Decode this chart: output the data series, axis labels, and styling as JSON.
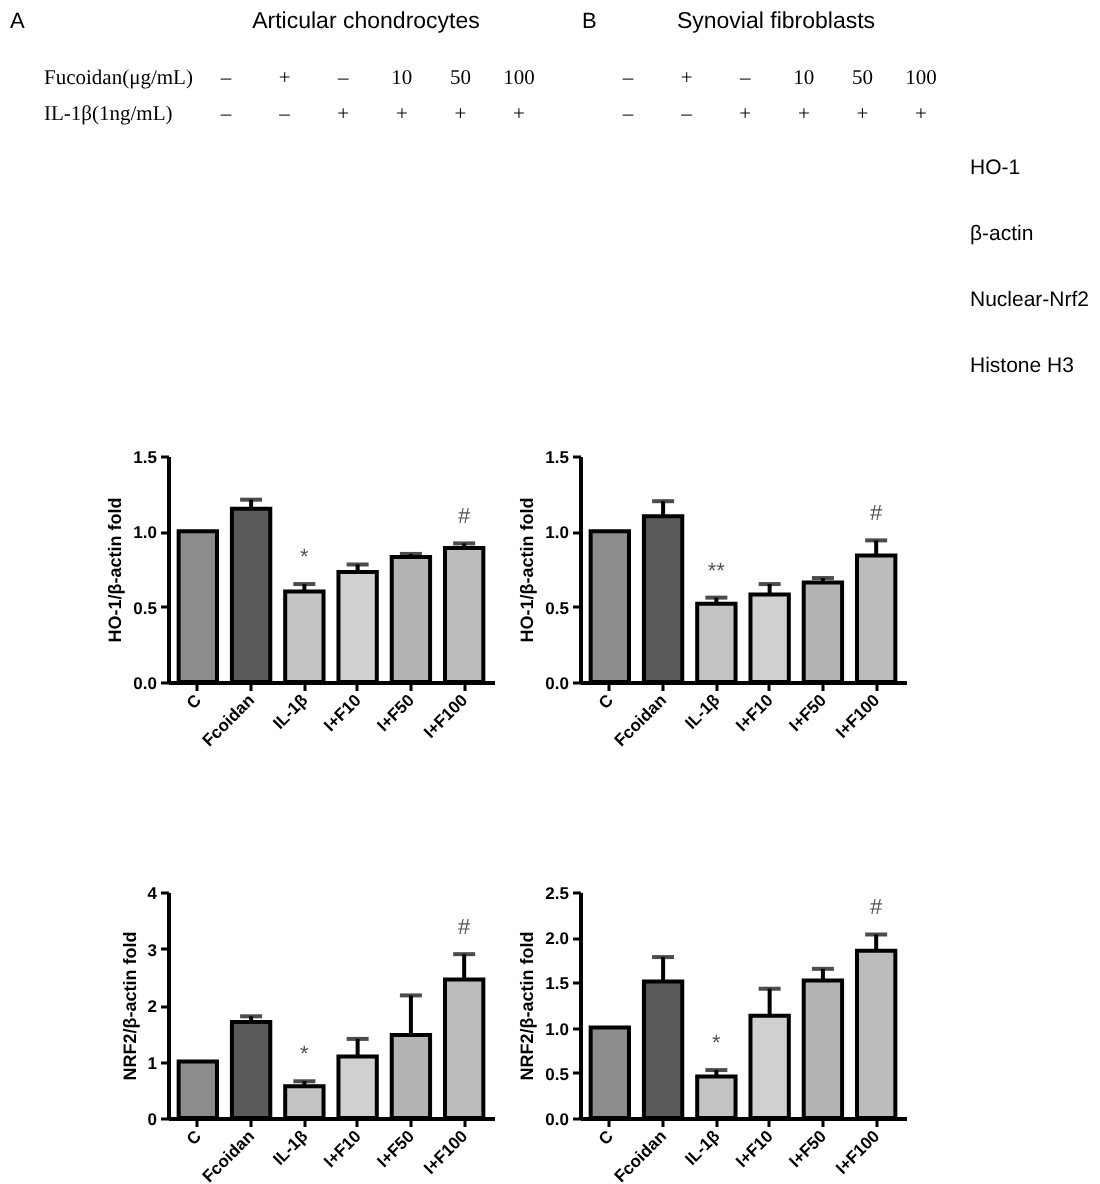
{
  "chart_data": [
    {
      "type": "other",
      "title": "Articular chondrocytes",
      "annotations": [
        "A"
      ],
      "y_categories": [
        "Fucoidan(μg/mL)",
        "IL-1β(1ng/mL)"
      ],
      "cell_labels": [
        [
          "–",
          "+",
          "–",
          "10",
          "50",
          "100"
        ],
        [
          "–",
          "–",
          "+",
          "+",
          "+",
          "+"
        ]
      ]
    },
    {
      "type": "other",
      "title": "Synovial fibroblasts",
      "annotations": [
        "B"
      ],
      "cell_labels": [
        [
          "–",
          "+",
          "–",
          "10",
          "50",
          "100"
        ],
        [
          "–",
          "–",
          "+",
          "+",
          "+",
          "+"
        ]
      ],
      "y2_categories": [
        "HO-1",
        "β-actin",
        "Nuclear-Nrf2",
        "Histone H3"
      ]
    },
    {
      "type": "bar",
      "ylabel": "HO-1/β-actin fold",
      "categories": [
        "C",
        "Fcoidan",
        "IL-1β",
        "I+F10",
        "I+F50",
        "I+F100"
      ],
      "values": [
        1.0,
        1.15,
        0.6,
        0.73,
        0.83,
        0.89
      ],
      "errors": [
        null,
        [
          1.15,
          1.21
        ],
        [
          0.6,
          0.65
        ],
        [
          0.73,
          0.78
        ],
        [
          0.83,
          0.85
        ],
        [
          0.89,
          0.92
        ]
      ],
      "colors": [
        "#8c8c8c",
        "#5a5a5a",
        "#c4c4c4",
        "#d0d0d0",
        "#b4b4b4",
        "#bcbcbc"
      ],
      "ylim": [
        0,
        1.5
      ],
      "yticks": [
        {
          "value": 0,
          "label": "0.0"
        },
        {
          "value": 0.5,
          "label": "0.5"
        },
        {
          "value": 1,
          "label": "1.0"
        },
        {
          "value": 1.5,
          "label": "1.5"
        }
      ],
      "annotations": [
        "*",
        "#"
      ]
    },
    {
      "type": "bar",
      "ylabel": "HO-1/β-actin fold",
      "categories": [
        "C",
        "Fcoidan",
        "IL-1β",
        "I+F10",
        "I+F50",
        "I+F100"
      ],
      "values": [
        1.0,
        1.1,
        0.52,
        0.58,
        0.66,
        0.84
      ],
      "errors": [
        null,
        [
          1.1,
          1.2
        ],
        [
          0.52,
          0.56
        ],
        [
          0.58,
          0.65
        ],
        [
          0.66,
          0.69
        ],
        [
          0.84,
          0.94
        ]
      ],
      "colors": [
        "#8c8c8c",
        "#5a5a5a",
        "#c4c4c4",
        "#d0d0d0",
        "#b4b4b4",
        "#bcbcbc"
      ],
      "ylim": [
        0,
        1.5
      ],
      "yticks": [
        {
          "value": 0,
          "label": "0.0"
        },
        {
          "value": 0.5,
          "label": "0.5"
        },
        {
          "value": 1,
          "label": "1.0"
        },
        {
          "value": 1.5,
          "label": "1.5"
        }
      ],
      "annotations": [
        "**",
        "#"
      ]
    },
    {
      "type": "bar",
      "ylabel": "NRF2/β-actin fold",
      "categories": [
        "C",
        "Fcoidan",
        "IL-1β",
        "I+F10",
        "I+F50",
        "I+F100"
      ],
      "values": [
        1.0,
        1.7,
        0.56,
        1.09,
        1.47,
        2.45
      ],
      "errors": [
        null,
        [
          1.7,
          1.8
        ],
        [
          0.56,
          0.65
        ],
        [
          1.09,
          1.4
        ],
        [
          1.47,
          2.17
        ],
        [
          2.45,
          2.9
        ]
      ],
      "colors": [
        "#8c8c8c",
        "#5a5a5a",
        "#c4c4c4",
        "#d0d0d0",
        "#b4b4b4",
        "#bcbcbc"
      ],
      "ylim": [
        0,
        4
      ],
      "yticks": [
        0,
        1,
        2,
        3,
        4
      ],
      "annotations": [
        "*",
        "#"
      ]
    },
    {
      "type": "bar",
      "ylabel": "NRF2/β-actin fold",
      "categories": [
        "C",
        "Fcoidan",
        "IL-1β",
        "I+F10",
        "I+F50",
        "I+F100"
      ],
      "values": [
        1.0,
        1.51,
        0.46,
        1.13,
        1.52,
        1.85
      ],
      "errors": [
        null,
        [
          1.51,
          1.78
        ],
        [
          0.46,
          0.53
        ],
        [
          1.13,
          1.43
        ],
        [
          1.52,
          1.65
        ],
        [
          1.85,
          2.03
        ]
      ],
      "colors": [
        "#8c8c8c",
        "#5a5a5a",
        "#c4c4c4",
        "#d0d0d0",
        "#b4b4b4",
        "#bcbcbc"
      ],
      "ylim": [
        0,
        2.5
      ],
      "yticks": [
        {
          "value": 0,
          "label": "0.0"
        },
        {
          "value": 0.5,
          "label": "0.5"
        },
        {
          "value": 1,
          "label": "1.0"
        },
        {
          "value": 1.5,
          "label": "1.5"
        },
        {
          "value": 2,
          "label": "2.0"
        },
        {
          "value": 2.5,
          "label": "2.5"
        }
      ],
      "annotations": [
        "*",
        "#"
      ]
    }
  ]
}
